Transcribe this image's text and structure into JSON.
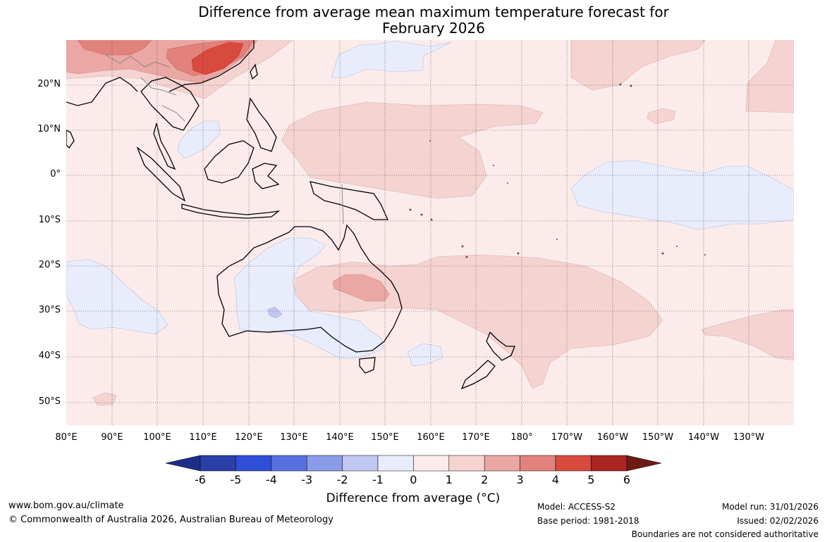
{
  "title": {
    "line1": "Difference from average mean maximum temperature forecast for",
    "line2": "February 2026"
  },
  "map": {
    "lat_labels": [
      "20°N",
      "10°N",
      "0°",
      "10°S",
      "20°S",
      "30°S",
      "40°S",
      "50°S"
    ],
    "lon_labels": [
      "80°E",
      "90°E",
      "100°E",
      "110°E",
      "120°E",
      "130°E",
      "140°E",
      "150°E",
      "160°E",
      "170°E",
      "180°",
      "170°W",
      "160°W",
      "150°W",
      "140°W",
      "130°W"
    ],
    "anomaly_regions": [
      {
        "region": "south-east China",
        "anomaly_class": "4 to 5"
      },
      {
        "region": "southern China",
        "anomaly_class": "2 to 4"
      },
      {
        "region": "central Australia",
        "anomaly_class": "2 to 3"
      },
      {
        "region": "western equatorial Pacific",
        "anomaly_class": "1 to 2"
      },
      {
        "region": "Tasman Sea / south-west Pacific",
        "anomaly_class": "1 to 2"
      },
      {
        "region": "western and southern Australia",
        "anomaly_class": "-1 to 0"
      },
      {
        "region": "eastern equatorial Pacific",
        "anomaly_class": "-1 to 0"
      },
      {
        "region": "background",
        "anomaly_class": "0 to 1"
      }
    ]
  },
  "colorbar": {
    "title": "Difference from average (°C)",
    "ticks": [
      "-6",
      "-5",
      "-4",
      "-3",
      "-2",
      "-1",
      "0",
      "1",
      "2",
      "3",
      "4",
      "5",
      "6"
    ],
    "colors": [
      "#1c2e8a",
      "#2a3fa8",
      "#2f4fd8",
      "#5670e0",
      "#8a9ce8",
      "#c0c8f2",
      "#e8ecfb",
      "#fbeceb",
      "#f5d3d1",
      "#eba7a3",
      "#e2827c",
      "#d94a3e",
      "#a8261f",
      "#6e1a14"
    ]
  },
  "footer": {
    "website": "www.bom.gov.au/climate",
    "copyright": "© Commonwealth of Australia 2026, Australian Bureau of Meteorology",
    "model": "Model: ACCESS-S2",
    "base_period": "Base period: 1981-2018",
    "model_run": "Model run: 31/01/2026",
    "issued": "Issued: 02/02/2026",
    "disclaimer": "Boundaries are not considered authoritative"
  }
}
